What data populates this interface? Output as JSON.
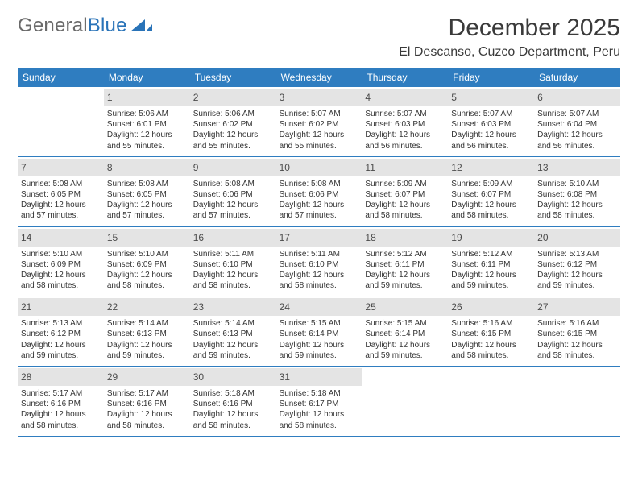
{
  "logo": {
    "part1": "General",
    "part2": "Blue"
  },
  "title": "December 2025",
  "location": "El Descanso, Cuzco Department, Peru",
  "colors": {
    "header_bg": "#2f7dc0",
    "header_text": "#ffffff",
    "day_header_bg": "#e4e4e4",
    "day_number": "#4b4b4b",
    "body_text": "#333333",
    "rule": "#2f7dc0",
    "logo_blue": "#2973b8",
    "logo_gray": "#6a6a6a"
  },
  "weekdays": [
    "Sunday",
    "Monday",
    "Tuesday",
    "Wednesday",
    "Thursday",
    "Friday",
    "Saturday"
  ],
  "weeks": [
    [
      null,
      {
        "n": "1",
        "sr": "5:06 AM",
        "ss": "6:01 PM",
        "dh": "12",
        "dm": "55"
      },
      {
        "n": "2",
        "sr": "5:06 AM",
        "ss": "6:02 PM",
        "dh": "12",
        "dm": "55"
      },
      {
        "n": "3",
        "sr": "5:07 AM",
        "ss": "6:02 PM",
        "dh": "12",
        "dm": "55"
      },
      {
        "n": "4",
        "sr": "5:07 AM",
        "ss": "6:03 PM",
        "dh": "12",
        "dm": "56"
      },
      {
        "n": "5",
        "sr": "5:07 AM",
        "ss": "6:03 PM",
        "dh": "12",
        "dm": "56"
      },
      {
        "n": "6",
        "sr": "5:07 AM",
        "ss": "6:04 PM",
        "dh": "12",
        "dm": "56"
      }
    ],
    [
      {
        "n": "7",
        "sr": "5:08 AM",
        "ss": "6:05 PM",
        "dh": "12",
        "dm": "57"
      },
      {
        "n": "8",
        "sr": "5:08 AM",
        "ss": "6:05 PM",
        "dh": "12",
        "dm": "57"
      },
      {
        "n": "9",
        "sr": "5:08 AM",
        "ss": "6:06 PM",
        "dh": "12",
        "dm": "57"
      },
      {
        "n": "10",
        "sr": "5:08 AM",
        "ss": "6:06 PM",
        "dh": "12",
        "dm": "57"
      },
      {
        "n": "11",
        "sr": "5:09 AM",
        "ss": "6:07 PM",
        "dh": "12",
        "dm": "58"
      },
      {
        "n": "12",
        "sr": "5:09 AM",
        "ss": "6:07 PM",
        "dh": "12",
        "dm": "58"
      },
      {
        "n": "13",
        "sr": "5:10 AM",
        "ss": "6:08 PM",
        "dh": "12",
        "dm": "58"
      }
    ],
    [
      {
        "n": "14",
        "sr": "5:10 AM",
        "ss": "6:09 PM",
        "dh": "12",
        "dm": "58"
      },
      {
        "n": "15",
        "sr": "5:10 AM",
        "ss": "6:09 PM",
        "dh": "12",
        "dm": "58"
      },
      {
        "n": "16",
        "sr": "5:11 AM",
        "ss": "6:10 PM",
        "dh": "12",
        "dm": "58"
      },
      {
        "n": "17",
        "sr": "5:11 AM",
        "ss": "6:10 PM",
        "dh": "12",
        "dm": "58"
      },
      {
        "n": "18",
        "sr": "5:12 AM",
        "ss": "6:11 PM",
        "dh": "12",
        "dm": "59"
      },
      {
        "n": "19",
        "sr": "5:12 AM",
        "ss": "6:11 PM",
        "dh": "12",
        "dm": "59"
      },
      {
        "n": "20",
        "sr": "5:13 AM",
        "ss": "6:12 PM",
        "dh": "12",
        "dm": "59"
      }
    ],
    [
      {
        "n": "21",
        "sr": "5:13 AM",
        "ss": "6:12 PM",
        "dh": "12",
        "dm": "59"
      },
      {
        "n": "22",
        "sr": "5:14 AM",
        "ss": "6:13 PM",
        "dh": "12",
        "dm": "59"
      },
      {
        "n": "23",
        "sr": "5:14 AM",
        "ss": "6:13 PM",
        "dh": "12",
        "dm": "59"
      },
      {
        "n": "24",
        "sr": "5:15 AM",
        "ss": "6:14 PM",
        "dh": "12",
        "dm": "59"
      },
      {
        "n": "25",
        "sr": "5:15 AM",
        "ss": "6:14 PM",
        "dh": "12",
        "dm": "59"
      },
      {
        "n": "26",
        "sr": "5:16 AM",
        "ss": "6:15 PM",
        "dh": "12",
        "dm": "58"
      },
      {
        "n": "27",
        "sr": "5:16 AM",
        "ss": "6:15 PM",
        "dh": "12",
        "dm": "58"
      }
    ],
    [
      {
        "n": "28",
        "sr": "5:17 AM",
        "ss": "6:16 PM",
        "dh": "12",
        "dm": "58"
      },
      {
        "n": "29",
        "sr": "5:17 AM",
        "ss": "6:16 PM",
        "dh": "12",
        "dm": "58"
      },
      {
        "n": "30",
        "sr": "5:18 AM",
        "ss": "6:16 PM",
        "dh": "12",
        "dm": "58"
      },
      {
        "n": "31",
        "sr": "5:18 AM",
        "ss": "6:17 PM",
        "dh": "12",
        "dm": "58"
      },
      null,
      null,
      null
    ]
  ]
}
